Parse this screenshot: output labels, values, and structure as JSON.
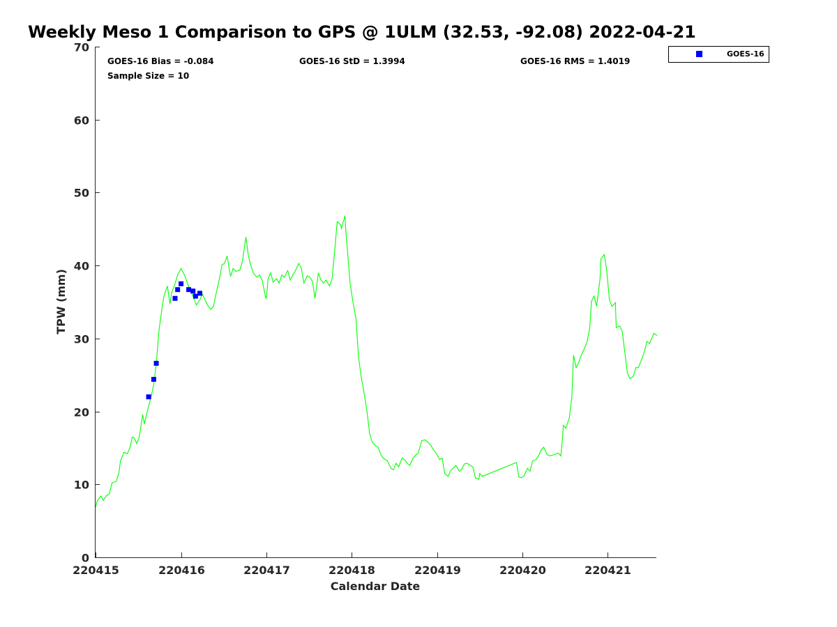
{
  "chart_data": {
    "type": "line",
    "title": "Weekly Meso 1 Comparison to GPS @ 1ULM (32.53, -92.08) 2022-04-21",
    "xlabel": "Calendar Date",
    "ylabel": "TPW (mm)",
    "x_units": "days since 220415",
    "xlim": [
      -0.01,
      6.57
    ],
    "ylim": [
      0,
      70
    ],
    "xticks": [
      0,
      1,
      2,
      3,
      4,
      5,
      6
    ],
    "xtick_labels": [
      "220415",
      "220416",
      "220417",
      "220418",
      "220419",
      "220420",
      "220421"
    ],
    "yticks": [
      0,
      10,
      20,
      30,
      40,
      50,
      60,
      70
    ],
    "ytick_labels": [
      "0",
      "10",
      "20",
      "30",
      "40",
      "50",
      "60",
      "70"
    ],
    "grid": false,
    "legend": {
      "placement": "top-right-outside",
      "entries": [
        "GOES-16"
      ]
    },
    "stats": {
      "bias": "GOES-16 Bias = -0.084",
      "std": "GOES-16 StD = 1.3994",
      "rms": "GOES-16 RMS = 1.4019",
      "sample": "Sample Size = 10"
    },
    "series": [
      {
        "name": "GPS",
        "type": "line",
        "color": "#00ff00",
        "points": [
          [
            0.0,
            6.9
          ],
          [
            0.02,
            7.8
          ],
          [
            0.06,
            8.4
          ],
          [
            0.09,
            7.8
          ],
          [
            0.12,
            8.4
          ],
          [
            0.16,
            8.7
          ],
          [
            0.19,
            10.2
          ],
          [
            0.24,
            10.4
          ],
          [
            0.27,
            11.5
          ],
          [
            0.29,
            13.2
          ],
          [
            0.33,
            14.4
          ],
          [
            0.37,
            14.2
          ],
          [
            0.4,
            15.0
          ],
          [
            0.43,
            16.5
          ],
          [
            0.45,
            16.4
          ],
          [
            0.48,
            15.6
          ],
          [
            0.51,
            16.4
          ],
          [
            0.55,
            19.6
          ],
          [
            0.57,
            18.3
          ],
          [
            0.61,
            20.3
          ],
          [
            0.65,
            22.0
          ],
          [
            0.68,
            23.7
          ],
          [
            0.71,
            26.5
          ],
          [
            0.74,
            31.0
          ],
          [
            0.78,
            34.4
          ],
          [
            0.8,
            35.8
          ],
          [
            0.84,
            37.2
          ],
          [
            0.87,
            34.7
          ],
          [
            0.89,
            36.3
          ],
          [
            0.92,
            37.2
          ],
          [
            0.96,
            38.7
          ],
          [
            1.0,
            39.6
          ],
          [
            1.04,
            38.7
          ],
          [
            1.09,
            37.1
          ],
          [
            1.14,
            35.8
          ],
          [
            1.18,
            34.6
          ],
          [
            1.22,
            35.3
          ],
          [
            1.25,
            36.1
          ],
          [
            1.28,
            35.3
          ],
          [
            1.32,
            34.4
          ],
          [
            1.35,
            34.0
          ],
          [
            1.38,
            34.4
          ],
          [
            1.41,
            36.1
          ],
          [
            1.45,
            38.2
          ],
          [
            1.48,
            40.1
          ],
          [
            1.51,
            40.3
          ],
          [
            1.54,
            41.3
          ],
          [
            1.58,
            38.5
          ],
          [
            1.61,
            39.6
          ],
          [
            1.64,
            39.2
          ],
          [
            1.69,
            39.4
          ],
          [
            1.72,
            40.6
          ],
          [
            1.76,
            43.9
          ],
          [
            1.79,
            41.3
          ],
          [
            1.82,
            39.9
          ],
          [
            1.85,
            38.9
          ],
          [
            1.89,
            38.4
          ],
          [
            1.92,
            38.7
          ],
          [
            1.95,
            38.0
          ],
          [
            1.99,
            35.7
          ],
          [
            2.0,
            35.5
          ],
          [
            2.02,
            38.2
          ],
          [
            2.05,
            39.0
          ],
          [
            2.08,
            37.7
          ],
          [
            2.12,
            38.2
          ],
          [
            2.15,
            37.6
          ],
          [
            2.18,
            38.7
          ],
          [
            2.21,
            38.4
          ],
          [
            2.25,
            39.3
          ],
          [
            2.28,
            38.0
          ],
          [
            2.31,
            38.7
          ],
          [
            2.34,
            39.3
          ],
          [
            2.38,
            40.3
          ],
          [
            2.41,
            39.6
          ],
          [
            2.44,
            37.6
          ],
          [
            2.48,
            38.6
          ],
          [
            2.51,
            38.4
          ],
          [
            2.54,
            37.8
          ],
          [
            2.57,
            35.5
          ],
          [
            2.61,
            39.0
          ],
          [
            2.64,
            38.0
          ],
          [
            2.67,
            37.6
          ],
          [
            2.7,
            38.0
          ],
          [
            2.74,
            37.2
          ],
          [
            2.77,
            38.2
          ],
          [
            2.8,
            42.0
          ],
          [
            2.83,
            46.0
          ],
          [
            2.87,
            45.6
          ],
          [
            2.88,
            45.1
          ],
          [
            2.92,
            46.8
          ],
          [
            2.93,
            44.9
          ],
          [
            2.97,
            39.2
          ],
          [
            2.98,
            37.7
          ],
          [
            3.01,
            35.3
          ],
          [
            3.05,
            32.7
          ],
          [
            3.08,
            27.5
          ],
          [
            3.11,
            24.8
          ],
          [
            3.15,
            22.2
          ],
          [
            3.18,
            19.9
          ],
          [
            3.21,
            17.0
          ],
          [
            3.24,
            15.8
          ],
          [
            3.28,
            15.3
          ],
          [
            3.31,
            15.1
          ],
          [
            3.34,
            14.1
          ],
          [
            3.37,
            13.6
          ],
          [
            3.42,
            13.2
          ],
          [
            3.46,
            12.2
          ],
          [
            3.49,
            12.0
          ],
          [
            3.52,
            12.9
          ],
          [
            3.55,
            12.4
          ],
          [
            3.59,
            13.6
          ],
          [
            3.62,
            13.4
          ],
          [
            3.65,
            12.9
          ],
          [
            3.68,
            12.6
          ],
          [
            3.72,
            13.6
          ],
          [
            3.75,
            14.0
          ],
          [
            3.78,
            14.3
          ],
          [
            3.82,
            16.0
          ],
          [
            3.86,
            16.1
          ],
          [
            3.9,
            15.7
          ],
          [
            3.93,
            15.3
          ],
          [
            3.96,
            14.7
          ],
          [
            4.0,
            14.1
          ],
          [
            4.03,
            13.4
          ],
          [
            4.06,
            13.6
          ],
          [
            4.09,
            11.5
          ],
          [
            4.13,
            11.1
          ],
          [
            4.16,
            11.9
          ],
          [
            4.19,
            12.2
          ],
          [
            4.22,
            12.6
          ],
          [
            4.26,
            11.8
          ],
          [
            4.29,
            12.1
          ],
          [
            4.32,
            12.8
          ],
          [
            4.35,
            12.9
          ],
          [
            4.39,
            12.6
          ],
          [
            4.42,
            12.4
          ],
          [
            4.45,
            10.9
          ],
          [
            4.49,
            10.7
          ],
          [
            4.5,
            11.5
          ],
          [
            4.53,
            11.1
          ],
          [
            4.93,
            13.0
          ],
          [
            4.96,
            11.0
          ],
          [
            4.99,
            10.9
          ],
          [
            5.02,
            11.2
          ],
          [
            5.06,
            12.2
          ],
          [
            5.09,
            11.8
          ],
          [
            5.12,
            13.2
          ],
          [
            5.16,
            13.4
          ],
          [
            5.19,
            13.9
          ],
          [
            5.22,
            14.7
          ],
          [
            5.25,
            15.1
          ],
          [
            5.29,
            14.1
          ],
          [
            5.32,
            13.9
          ],
          [
            5.38,
            14.1
          ],
          [
            5.42,
            14.3
          ],
          [
            5.45,
            13.9
          ],
          [
            5.47,
            16.2
          ],
          [
            5.48,
            18.1
          ],
          [
            5.51,
            17.7
          ],
          [
            5.55,
            19.1
          ],
          [
            5.58,
            22.0
          ],
          [
            5.6,
            27.7
          ],
          [
            5.63,
            26.0
          ],
          [
            5.66,
            26.7
          ],
          [
            5.69,
            27.7
          ],
          [
            5.73,
            28.7
          ],
          [
            5.76,
            29.6
          ],
          [
            5.79,
            31.5
          ],
          [
            5.81,
            35.1
          ],
          [
            5.84,
            35.8
          ],
          [
            5.87,
            34.4
          ],
          [
            5.91,
            38.2
          ],
          [
            5.92,
            40.9
          ],
          [
            5.96,
            41.5
          ],
          [
            5.99,
            39.2
          ],
          [
            6.02,
            35.3
          ],
          [
            6.05,
            34.4
          ],
          [
            6.09,
            34.9
          ],
          [
            6.1,
            31.5
          ],
          [
            6.14,
            31.7
          ],
          [
            6.17,
            31.0
          ],
          [
            6.2,
            28.2
          ],
          [
            6.23,
            25.3
          ],
          [
            6.26,
            24.5
          ],
          [
            6.3,
            24.8
          ],
          [
            6.33,
            26.0
          ],
          [
            6.36,
            26.0
          ],
          [
            6.4,
            27.2
          ],
          [
            6.43,
            28.2
          ],
          [
            6.46,
            29.6
          ],
          [
            6.49,
            29.3
          ],
          [
            6.53,
            30.4
          ],
          [
            6.54,
            30.7
          ],
          [
            6.58,
            30.4
          ]
        ]
      },
      {
        "name": "GOES-16",
        "type": "scatter",
        "color": "#0000ff",
        "points": [
          [
            0.62,
            22.0
          ],
          [
            0.68,
            24.4
          ],
          [
            0.71,
            26.6
          ],
          [
            0.93,
            35.5
          ],
          [
            0.96,
            36.7
          ],
          [
            1.0,
            37.5
          ],
          [
            1.09,
            36.7
          ],
          [
            1.14,
            36.5
          ],
          [
            1.17,
            35.8
          ],
          [
            1.22,
            36.2
          ]
        ]
      }
    ]
  }
}
